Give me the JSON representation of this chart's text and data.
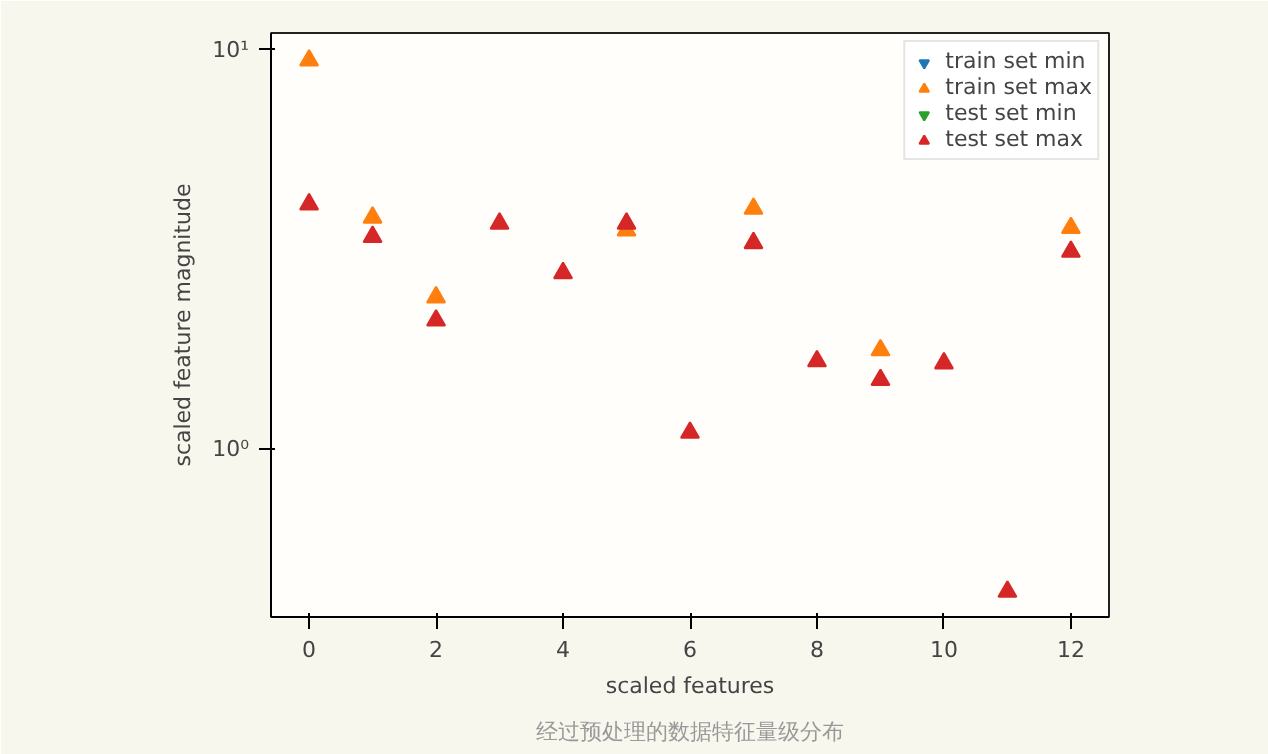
{
  "chart_data": {
    "type": "scatter",
    "xlabel": "scaled features",
    "ylabel": "scaled feature magnitude",
    "annotations": [
      "经过预处理的数据特征量级分布"
    ],
    "x": [
      0,
      1,
      2,
      3,
      4,
      5,
      6,
      7,
      8,
      9,
      10,
      11,
      12
    ],
    "series": [
      {
        "name": "train set min",
        "color": "#1f77b4",
        "marker": "triangle_down",
        "values": [
          null,
          null,
          null,
          null,
          null,
          null,
          null,
          null,
          null,
          null,
          null,
          null,
          null
        ]
      },
      {
        "name": "train set max",
        "color": "#ff7f0e",
        "marker": "triangle",
        "values": [
          9.4,
          3.8,
          2.4,
          null,
          null,
          3.53,
          null,
          4.0,
          null,
          1.77,
          null,
          null,
          3.58
        ]
      },
      {
        "name": "test set min",
        "color": "#2ca02c",
        "marker": "triangle_down",
        "values": [
          null,
          null,
          null,
          null,
          null,
          null,
          null,
          null,
          null,
          null,
          null,
          null,
          null
        ]
      },
      {
        "name": "test set max",
        "color": "#d62728",
        "marker": "triangle",
        "values": [
          4.1,
          3.4,
          2.1,
          3.67,
          2.76,
          3.67,
          1.1,
          3.28,
          1.66,
          1.49,
          1.64,
          0.44,
          3.12
        ]
      }
    ],
    "log": "y",
    "xlim": [
      -0.6,
      12.6
    ],
    "ylim": [
      0.38,
      11.0
    ],
    "xticks": [
      0,
      2,
      4,
      6,
      8,
      10,
      12
    ],
    "yticks": [
      {
        "value": 1,
        "label": "10⁰"
      },
      {
        "value": 10,
        "label": "10¹"
      }
    ],
    "grid": false,
    "legend": "top right"
  }
}
